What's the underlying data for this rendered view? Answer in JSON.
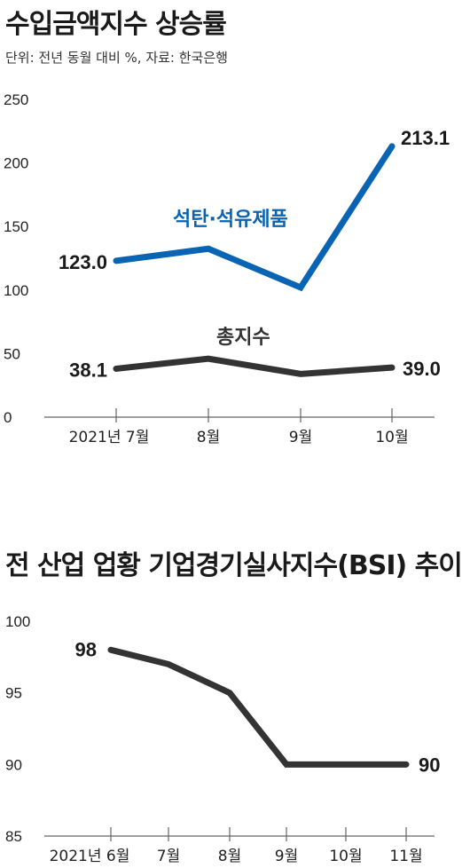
{
  "chart_data": [
    {
      "type": "line",
      "title": "수입금액지수 상승률",
      "subtitle": "단위: 전년 동월 대비 %, 자료: 한국은행",
      "categories": [
        "2021년 7월",
        "8월",
        "9월",
        "10월"
      ],
      "ylim": [
        0,
        250
      ],
      "yticks": [
        0,
        50,
        100,
        150,
        200,
        250
      ],
      "grid": false,
      "series": [
        {
          "name": "석탄·석유제품",
          "color": "#0a64b4",
          "values": [
            123.0,
            132.5,
            102.0,
            213.1
          ],
          "labels": [
            "123.0",
            "",
            "",
            "213.1"
          ]
        },
        {
          "name": "총지수",
          "color": "#333333",
          "values": [
            38.1,
            46.0,
            34.0,
            39.0
          ],
          "labels": [
            "38.1",
            "",
            "",
            "39.0"
          ]
        }
      ]
    },
    {
      "type": "line",
      "title": "전 산업 업황 기업경기실사지수(BSI) 추이",
      "categories": [
        "2021년 6월",
        "7월",
        "8월",
        "9월",
        "10월",
        "11월"
      ],
      "ylim": [
        85,
        100
      ],
      "yticks": [
        85,
        90,
        95,
        100
      ],
      "grid": false,
      "series": [
        {
          "color": "#333333",
          "values": [
            98,
            97,
            95,
            90,
            90,
            90
          ],
          "labels": [
            "98",
            "",
            "",
            "",
            "",
            "90"
          ]
        }
      ]
    }
  ]
}
